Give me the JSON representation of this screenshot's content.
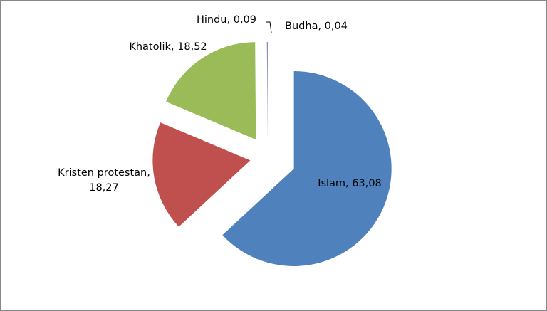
{
  "chart_data": {
    "type": "pie",
    "values": [
      63.08,
      18.27,
      18.52,
      0.09,
      0.04
    ],
    "value_labels": [
      "Islam, 63,08",
      "Kristen protestan, 18,27",
      "Khatolik, 18,52",
      "Hindu, 0,09",
      "Budha, 0,04"
    ],
    "colors": [
      "#4f81bd",
      "#c0504d",
      "#9bbb59",
      "#8064a2",
      "#4bacc6"
    ]
  }
}
